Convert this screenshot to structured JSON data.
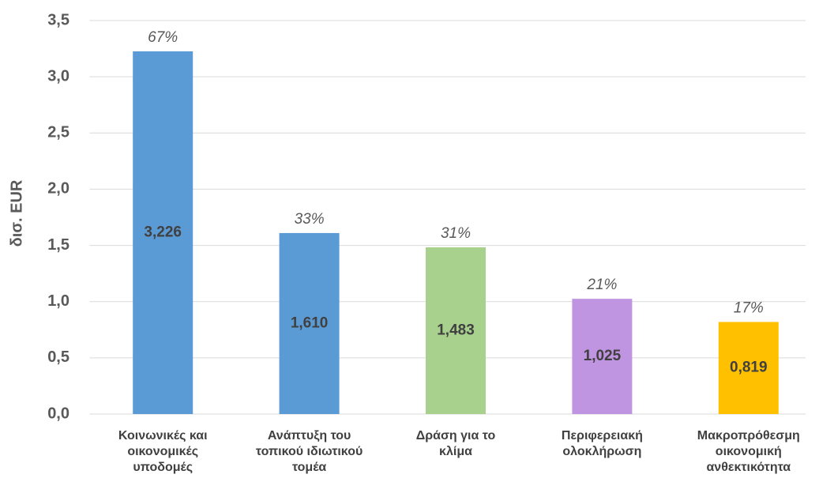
{
  "chart_data": {
    "type": "bar",
    "y_label": "δισ. EUR",
    "categories": [
      [
        "Κοινωνικές και",
        "οικονομικές",
        "υποδομές"
      ],
      [
        "Ανάπτυξη του",
        "τοπικού ιδιωτικού",
        "τομέα"
      ],
      [
        "Δράση για το",
        "κλίμα"
      ],
      [
        "Περιφερειακή",
        "ολοκλήρωση"
      ],
      [
        "Μακροπρόθεσμη",
        "οικονομική",
        "ανθεκτικότητα"
      ]
    ],
    "values": [
      3.226,
      1.61,
      1.483,
      1.025,
      0.819
    ],
    "value_labels": [
      "3,226",
      "1,610",
      "1,483",
      "1,025",
      "0,819"
    ],
    "annotations": [
      "67%",
      "33%",
      "31%",
      "21%",
      "17%"
    ],
    "colors": [
      "#5b9bd5",
      "#5b9bd5",
      "#a9d18e",
      "#bf94e0",
      "#ffc000"
    ],
    "ylim": [
      0,
      3.5
    ],
    "yticks": [
      {
        "value": 0,
        "label": "0,0"
      },
      {
        "value": 0.5,
        "label": "0,5"
      },
      {
        "value": 1,
        "label": "1,0"
      },
      {
        "value": 1.5,
        "label": "1,5"
      },
      {
        "value": 2,
        "label": "2,0"
      },
      {
        "value": 2.5,
        "label": "2,5"
      },
      {
        "value": 3,
        "label": "3,0"
      },
      {
        "value": 3.5,
        "label": "3,5"
      }
    ],
    "grid": true
  }
}
